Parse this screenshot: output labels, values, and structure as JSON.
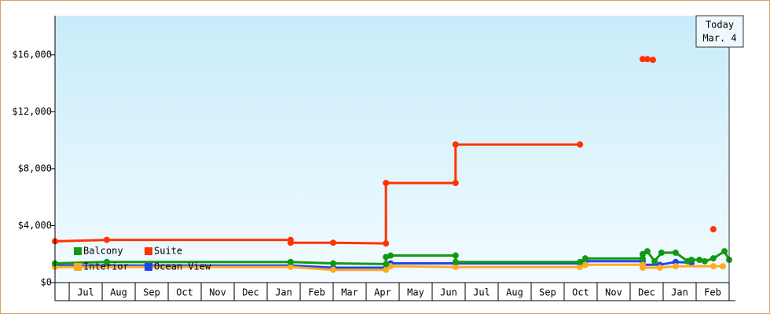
{
  "chart_data": {
    "type": "line",
    "step_markers": true,
    "today_label": "Today",
    "today_date": "Mar. 4",
    "xlim": [
      -0.43,
      20.0
    ],
    "xticks": [
      {
        "value": 0.5,
        "label": "Jul"
      },
      {
        "value": 1.5,
        "label": "Aug"
      },
      {
        "value": 2.5,
        "label": "Sep"
      },
      {
        "value": 3.5,
        "label": "Oct"
      },
      {
        "value": 4.5,
        "label": "Nov"
      },
      {
        "value": 5.5,
        "label": "Dec"
      },
      {
        "value": 6.5,
        "label": "Jan"
      },
      {
        "value": 7.5,
        "label": "Feb"
      },
      {
        "value": 8.5,
        "label": "Mar"
      },
      {
        "value": 9.5,
        "label": "Apr"
      },
      {
        "value": 10.5,
        "label": "May"
      },
      {
        "value": 11.5,
        "label": "Jun"
      },
      {
        "value": 12.5,
        "label": "Jul"
      },
      {
        "value": 13.5,
        "label": "Aug"
      },
      {
        "value": 14.5,
        "label": "Sep"
      },
      {
        "value": 15.5,
        "label": "Oct"
      },
      {
        "value": 16.5,
        "label": "Nov"
      },
      {
        "value": 17.5,
        "label": "Dec"
      },
      {
        "value": 18.5,
        "label": "Jan"
      },
      {
        "value": 19.5,
        "label": "Feb"
      }
    ],
    "ylim": [
      0,
      18750
    ],
    "yticks": [
      {
        "value": 0,
        "label": "$0"
      },
      {
        "value": 4000,
        "label": "$4,000"
      },
      {
        "value": 8000,
        "label": "$8,000"
      },
      {
        "value": 12000,
        "label": "$12,000"
      },
      {
        "value": 16000,
        "label": "$16,000"
      }
    ],
    "series": [
      {
        "name": "Balcony",
        "color": "#119911",
        "x": [
          -0.43,
          1.14,
          6.71,
          8.0,
          9.6,
          9.6,
          9.74,
          11.71,
          11.71,
          15.48,
          15.64,
          17.38,
          17.38,
          17.52,
          17.74,
          17.95,
          18.38,
          18.74,
          18.86,
          19.1,
          19.26,
          19.52,
          19.86,
          20.0
        ],
        "values": [
          1350,
          1450,
          1450,
          1350,
          1300,
          1800,
          1900,
          1900,
          1450,
          1450,
          1700,
          1700,
          2000,
          2200,
          1500,
          2100,
          2100,
          1500,
          1600,
          1600,
          1500,
          1700,
          2200,
          1600
        ]
      },
      {
        "name": "Suite",
        "color": "#ff3300",
        "x": [
          -0.43,
          1.14,
          6.71,
          6.71,
          8.0,
          9.6,
          9.6,
          11.71,
          11.71,
          15.48,
          null,
          17.38,
          17.52,
          17.69,
          null,
          19.52
        ],
        "values": [
          2900,
          3000,
          3000,
          2800,
          2800,
          2750,
          7000,
          7000,
          9700,
          9700,
          null,
          15700,
          15700,
          15650,
          null,
          3750
        ]
      },
      {
        "name": "Interior",
        "color": "#ffaa22",
        "x": [
          -0.43,
          6.71,
          8.0,
          9.6,
          9.74,
          11.71,
          15.48,
          15.64,
          17.38,
          17.38,
          17.9,
          18.38,
          19.52,
          19.81
        ],
        "values": [
          1100,
          1100,
          900,
          900,
          1150,
          1100,
          1100,
          1250,
          1250,
          1050,
          1050,
          1150,
          1150,
          1150
        ]
      },
      {
        "name": "Ocean View",
        "color": "#2244ee",
        "x": [
          -0.43,
          6.71,
          8.0,
          9.6,
          9.74,
          11.71,
          15.48,
          15.64,
          17.38,
          17.38,
          17.9,
          18.38,
          18.86
        ],
        "values": [
          1200,
          1200,
          1050,
          1050,
          1350,
          1350,
          1350,
          1500,
          1500,
          1250,
          1250,
          1450,
          1400
        ]
      }
    ]
  }
}
